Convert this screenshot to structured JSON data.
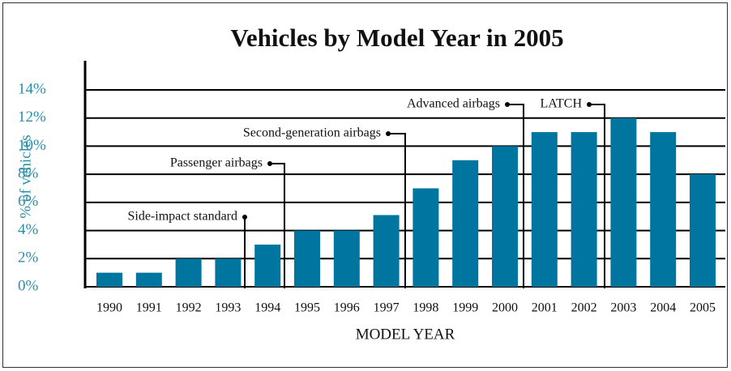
{
  "chart_data": {
    "type": "bar",
    "title": "Vehicles by Model Year in 2005",
    "ylabel": "% of vehicles",
    "xlabel": "MODEL YEAR",
    "categories": [
      "1990",
      "1991",
      "1992",
      "1993",
      "1994",
      "1995",
      "1996",
      "1997",
      "1998",
      "1999",
      "2000",
      "2001",
      "2002",
      "2003",
      "2004",
      "2005"
    ],
    "values": [
      1,
      1,
      2,
      2,
      3,
      4,
      4,
      5.1,
      7,
      9,
      10,
      11,
      11,
      12,
      11,
      8
    ],
    "color": "#00759f",
    "ylim": [
      0,
      14
    ],
    "yticks": [
      {
        "value": 0,
        "label": "0%"
      },
      {
        "value": 2,
        "label": "2%"
      },
      {
        "value": 4,
        "label": "4%"
      },
      {
        "value": 6,
        "label": "6%"
      },
      {
        "value": 8,
        "label": "8%"
      },
      {
        "value": 10,
        "label": "10%"
      },
      {
        "value": 12,
        "label": "12%"
      },
      {
        "value": 14,
        "label": "14%"
      }
    ],
    "grid": true,
    "annotations": [
      "Side-impact standard",
      "Passenger airbags",
      "Second-generation airbags",
      "Advanced airbags",
      "LATCH"
    ]
  }
}
